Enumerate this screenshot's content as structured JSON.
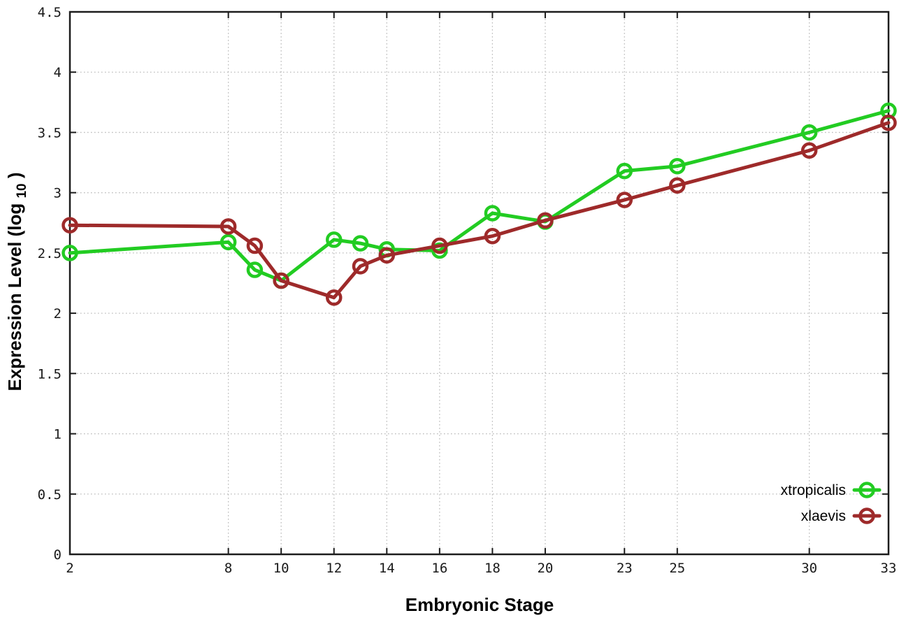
{
  "chart_data": {
    "type": "line",
    "title": "",
    "xlabel": "Embryonic Stage",
    "ylabel": "Expression Level (log10)",
    "ylabel_parts": {
      "prefix": "Expression Level (log",
      "sub": "10",
      "suffix": ")"
    },
    "x": [
      2,
      8,
      9,
      10,
      12,
      13,
      14,
      16,
      18,
      20,
      23,
      25,
      30,
      33
    ],
    "series": [
      {
        "name": "xtropicalis",
        "color": "#22cc22",
        "values": [
          2.5,
          2.59,
          2.36,
          2.27,
          2.61,
          2.58,
          2.53,
          2.52,
          2.83,
          2.76,
          3.18,
          3.22,
          3.5,
          3.68
        ]
      },
      {
        "name": "xlaevis",
        "color": "#9e2a2a",
        "values": [
          2.73,
          2.72,
          2.56,
          2.27,
          2.13,
          2.39,
          2.48,
          2.56,
          2.64,
          2.77,
          2.94,
          3.06,
          3.35,
          3.58
        ]
      }
    ],
    "xticks": [
      2,
      8,
      10,
      12,
      14,
      16,
      18,
      20,
      23,
      25,
      30,
      33
    ],
    "yticks": [
      0,
      0.5,
      1,
      1.5,
      2,
      2.5,
      3,
      3.5,
      4,
      4.5
    ],
    "xlim": [
      2,
      33
    ],
    "ylim": [
      0,
      4.5
    ],
    "grid": true,
    "legend_position": "bottom-right",
    "marker": "open-circle",
    "colors": {
      "border": "#1c1c1c",
      "grid": "#b8b8b8",
      "tick_text": "#1a1a1a",
      "background": "#ffffff"
    }
  }
}
